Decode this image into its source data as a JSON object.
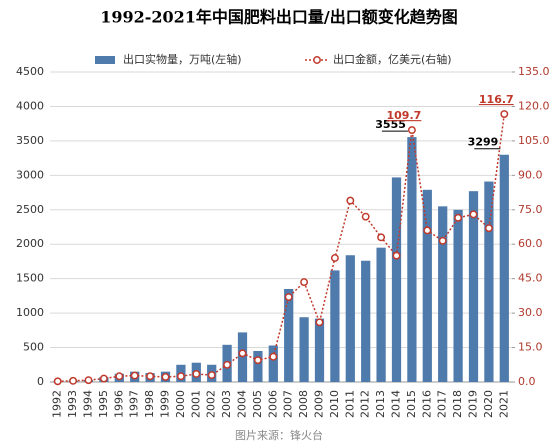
{
  "chart_data": {
    "type": "bar-line",
    "title": "1992-2021年中国肥料出口量/出口额变化趋势图",
    "source": "图片来源：锋火台",
    "categories": [
      "1992",
      "1993",
      "1994",
      "1995",
      "1996",
      "1997",
      "1998",
      "1999",
      "2000",
      "2001",
      "2002",
      "2003",
      "2004",
      "2005",
      "2006",
      "2007",
      "2008",
      "2009",
      "2010",
      "2011",
      "2012",
      "2013",
      "2014",
      "2015",
      "2016",
      "2017",
      "2018",
      "2019",
      "2020",
      "2021"
    ],
    "series": [
      {
        "name": "出口实物量，万吨(左轴)",
        "color": "#4f7bac",
        "type": "bar",
        "values": [
          10,
          20,
          30,
          70,
          120,
          150,
          130,
          150,
          250,
          280,
          250,
          540,
          720,
          450,
          530,
          1350,
          940,
          920,
          1620,
          1840,
          1760,
          1950,
          2970,
          3555,
          2790,
          2550,
          2500,
          2770,
          2910,
          3299
        ],
        "value_labels": [
          null,
          null,
          null,
          null,
          null,
          null,
          null,
          null,
          null,
          null,
          null,
          null,
          null,
          null,
          null,
          null,
          null,
          null,
          null,
          null,
          null,
          null,
          null,
          "3555",
          null,
          null,
          null,
          null,
          null,
          "3299"
        ]
      },
      {
        "name": "出口金额，亿美元(右轴)",
        "color": "#c0392b",
        "type": "line",
        "axis": "y2",
        "values": [
          0.3,
          0.5,
          0.8,
          1.5,
          2.5,
          2.8,
          2.5,
          2.2,
          2.5,
          3.5,
          3,
          7.5,
          12.5,
          9.5,
          11,
          37,
          43.5,
          26,
          54,
          79,
          72,
          63,
          55,
          109.7,
          66,
          61.5,
          71.5,
          73,
          67,
          116.7
        ],
        "value_labels": [
          null,
          null,
          null,
          null,
          null,
          null,
          null,
          null,
          null,
          null,
          null,
          null,
          null,
          null,
          null,
          null,
          null,
          null,
          null,
          null,
          null,
          null,
          null,
          "109.7",
          null,
          null,
          null,
          null,
          null,
          "116.7"
        ]
      }
    ],
    "ylim": [
      0,
      4500
    ],
    "yticks": [
      0,
      500,
      1000,
      1500,
      2000,
      2500,
      3000,
      3500,
      4000,
      4500
    ],
    "y2lim": [
      0,
      135
    ],
    "y2ticks": [
      {
        "value": 0,
        "label": "0.0"
      },
      {
        "value": 15,
        "label": "15.0"
      },
      {
        "value": 30,
        "label": "30.0"
      },
      {
        "value": 45,
        "label": "45.0"
      },
      {
        "value": 60,
        "label": "60.0"
      },
      {
        "value": 75,
        "label": "75.0"
      },
      {
        "value": 90,
        "label": "90.0"
      },
      {
        "value": 105,
        "label": "105.0"
      },
      {
        "value": 120,
        "label": "120.0"
      },
      {
        "value": 135,
        "label": "135.0"
      }
    ],
    "grid": true
  }
}
